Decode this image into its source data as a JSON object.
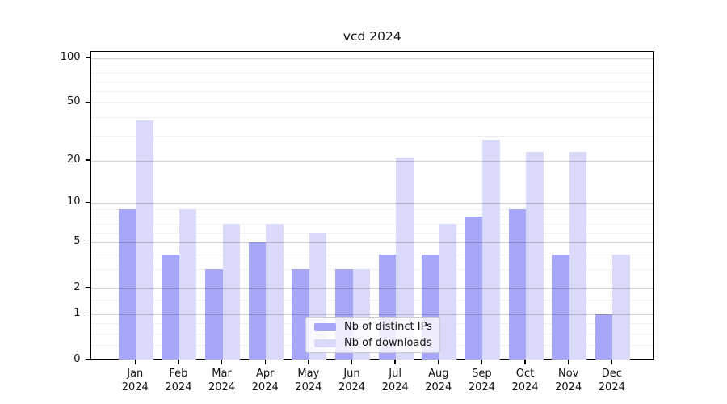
{
  "chart_data": {
    "type": "bar",
    "title": "vcd 2024",
    "categories": [
      "Jan",
      "Feb",
      "Mar",
      "Apr",
      "May",
      "Jun",
      "Jul",
      "Aug",
      "Sep",
      "Oct",
      "Nov",
      "Dec"
    ],
    "x_tick_year": "2024",
    "series": [
      {
        "name": "Nb of distinct IPs",
        "color": "#a7a7f7",
        "values": [
          9,
          4,
          3,
          5,
          3,
          3,
          4,
          4,
          8,
          9,
          4,
          1
        ]
      },
      {
        "name": "Nb of downloads",
        "color": "#d9d9fa",
        "values": [
          38,
          9,
          7,
          7,
          6,
          3,
          21,
          7,
          28,
          23,
          23,
          4
        ]
      }
    ],
    "y_axis": {
      "scale": "log10(1+v)",
      "tick_values": [
        0,
        1,
        2,
        5,
        10,
        20,
        50,
        100
      ],
      "tick_labels": [
        "0",
        "1",
        "2",
        "5",
        "10",
        "20",
        "50",
        "100"
      ],
      "minor_gridline_values": [
        0.25,
        0.5,
        0.75,
        1.5,
        3,
        4,
        6,
        7,
        8,
        9,
        30,
        40,
        60,
        70,
        80,
        90
      ],
      "major_gridline_values": [
        1,
        2,
        5,
        10,
        20,
        50,
        100
      ],
      "top_value": 111.7
    },
    "grid": "horizontal",
    "legend_position": "lower-center"
  }
}
